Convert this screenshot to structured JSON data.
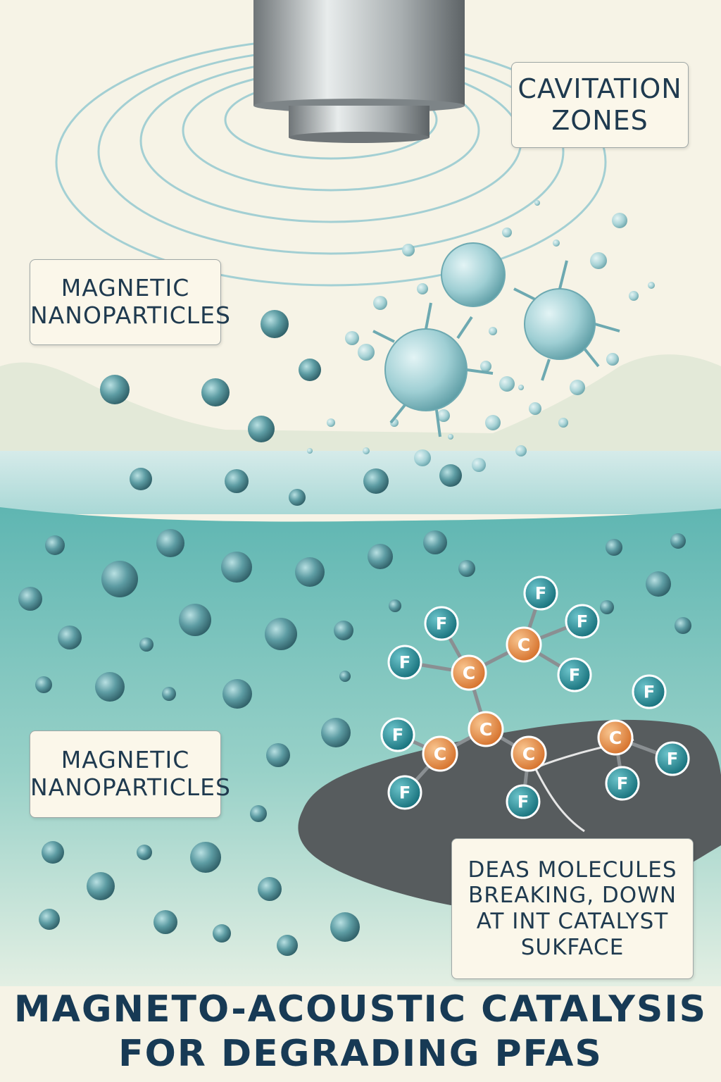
{
  "labels": {
    "cavitation": {
      "line1": "CAVITATION",
      "line2": "ZONES"
    },
    "magnetic_top": {
      "line1": "MAGNETIC",
      "line2": "NANOPARTICLES"
    },
    "magnetic_bottom": {
      "line1": "MAGNETIC",
      "line2": "NANOPARTICLES"
    },
    "pfas": {
      "line1": "DEAS MOLECULES",
      "line2": "BREAKING, DOWN",
      "line3": "AT INT CATALYST",
      "line4": "SUKFACE"
    }
  },
  "title": {
    "line1": "MAGNETO-ACOUSTIC CATALYSIS",
    "line2": "FOR DEGRADING PFAS"
  },
  "molecule": {
    "carbon_symbol": "C",
    "fluorine_symbol": "F"
  },
  "colors": {
    "background": "#f6f3e6",
    "water": "#6dbfbb",
    "nanoparticle": "#4f8f96",
    "carbon": "#e58a3c",
    "fluorine": "#1f8b96",
    "catalyst": "#555a5c",
    "text": "#1f3a4f"
  }
}
